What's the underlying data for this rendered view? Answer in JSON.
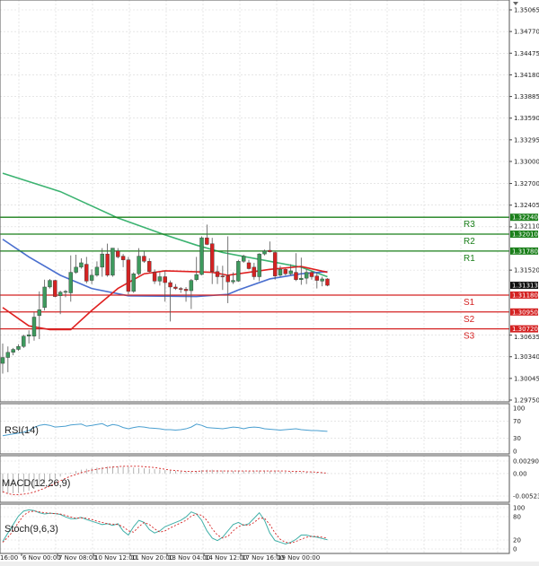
{
  "chart_data": [
    {
      "type": "candlestick",
      "panel": "price",
      "y_ticks": [
        "1.35065",
        "1.34770",
        "1.34475",
        "1.34180",
        "1.33885",
        "1.33590",
        "1.33295",
        "1.33000",
        "1.32700",
        "1.32405",
        "1.32110",
        "1.31520",
        "1.30635",
        "1.30340",
        "1.30045",
        "1.29750"
      ],
      "ylim": [
        1.2975,
        1.35065
      ],
      "x_ticks": [
        "16:00",
        "6 Nov 00:00",
        "7 Nov 08:00",
        "10 Nov 12:00",
        "11 Nov 20:00",
        "13 Nov 04:00",
        "14 Nov 12:00",
        "17 Nov 16:00",
        "19 Nov 00:00"
      ],
      "grid": true,
      "current_price": "1.31313",
      "levels": [
        {
          "name": "R3",
          "value": "1.32240",
          "color": "#1a7f1a"
        },
        {
          "name": "R2",
          "value": "1.32010",
          "color": "#1a7f1a"
        },
        {
          "name": "R1",
          "value": "1.31780",
          "color": "#1a7f1a"
        },
        {
          "name": "S1",
          "value": "1.31180",
          "color": "#d42222"
        },
        {
          "name": "S2",
          "value": "1.30950",
          "color": "#d42222"
        },
        {
          "name": "S3",
          "value": "1.30720",
          "color": "#d42222"
        }
      ],
      "candles_ohlc": [
        [
          1.3025,
          1.3052,
          1.3011,
          1.3033
        ],
        [
          1.3033,
          1.3048,
          1.3013,
          1.304
        ],
        [
          1.304,
          1.3046,
          1.3036,
          1.3044
        ],
        [
          1.3044,
          1.3051,
          1.3042,
          1.3048
        ],
        [
          1.3048,
          1.3064,
          1.3046,
          1.3062
        ],
        [
          1.3062,
          1.307,
          1.3052,
          1.3064
        ],
        [
          1.3062,
          1.3095,
          1.3056,
          1.3088
        ],
        [
          1.309,
          1.3123,
          1.3058,
          1.3098
        ],
        [
          1.3101,
          1.3139,
          1.3097,
          1.3129
        ],
        [
          1.3129,
          1.314,
          1.3127,
          1.3138
        ],
        [
          1.3138,
          1.3139,
          1.3115,
          1.3116
        ],
        [
          1.3117,
          1.3124,
          1.3092,
          1.3122
        ],
        [
          1.3122,
          1.3125,
          1.3115,
          1.3123
        ],
        [
          1.3121,
          1.3172,
          1.3109,
          1.3149
        ],
        [
          1.3149,
          1.3173,
          1.3147,
          1.3156
        ],
        [
          1.3156,
          1.3168,
          1.3154,
          1.3162
        ],
        [
          1.316,
          1.317,
          1.3134,
          1.3137
        ],
        [
          1.3138,
          1.3153,
          1.3133,
          1.3145
        ],
        [
          1.3145,
          1.3164,
          1.3143,
          1.3156
        ],
        [
          1.3156,
          1.3182,
          1.3143,
          1.3174
        ],
        [
          1.3174,
          1.3188,
          1.3143,
          1.3145
        ],
        [
          1.3145,
          1.3182,
          1.3143,
          1.3182
        ],
        [
          1.3178,
          1.3182,
          1.3168,
          1.317
        ],
        [
          1.3171,
          1.3174,
          1.3156,
          1.3166
        ],
        [
          1.3166,
          1.317,
          1.3119,
          1.3123
        ],
        [
          1.3123,
          1.3149,
          1.3121,
          1.3147
        ],
        [
          1.3147,
          1.3182,
          1.3145,
          1.3171
        ],
        [
          1.3171,
          1.3178,
          1.3162,
          1.3164
        ],
        [
          1.3164,
          1.3168,
          1.3149,
          1.315
        ],
        [
          1.3149,
          1.3153,
          1.3133,
          1.3137
        ],
        [
          1.3137,
          1.3149,
          1.3131,
          1.3143
        ],
        [
          1.3143,
          1.3151,
          1.3109,
          1.3135
        ],
        [
          1.3135,
          1.3138,
          1.3082,
          1.3129
        ],
        [
          1.3129,
          1.3133,
          1.3125,
          1.3127
        ],
        [
          1.3127,
          1.3129,
          1.3121,
          1.3126
        ],
        [
          1.3126,
          1.3129,
          1.3109,
          1.3124
        ],
        [
          1.3124,
          1.314,
          1.3099,
          1.3138
        ],
        [
          1.3139,
          1.317,
          1.3137,
          1.3146
        ],
        [
          1.3146,
          1.3198,
          1.3145,
          1.3196
        ],
        [
          1.3196,
          1.3214,
          1.3186,
          1.3187
        ],
        [
          1.3188,
          1.3196,
          1.3133,
          1.315
        ],
        [
          1.315,
          1.3158,
          1.3133,
          1.3143
        ],
        [
          1.3144,
          1.3158,
          1.3125,
          1.3143
        ],
        [
          1.3144,
          1.3198,
          1.3107,
          1.3136
        ],
        [
          1.3136,
          1.3149,
          1.3133,
          1.3138
        ],
        [
          1.3137,
          1.3166,
          1.3136,
          1.3164
        ],
        [
          1.3164,
          1.3173,
          1.3162,
          1.3171
        ],
        [
          1.3162,
          1.3166,
          1.3153,
          1.3154
        ],
        [
          1.3156,
          1.3162,
          1.3139,
          1.3143
        ],
        [
          1.3143,
          1.3175,
          1.3137,
          1.3174
        ],
        [
          1.3174,
          1.318,
          1.3172,
          1.3178
        ],
        [
          1.3179,
          1.3191,
          1.3176,
          1.3177
        ],
        [
          1.3176,
          1.3178,
          1.3139,
          1.3144
        ],
        [
          1.3145,
          1.3158,
          1.3143,
          1.3153
        ],
        [
          1.3153,
          1.3154,
          1.3145,
          1.3147
        ],
        [
          1.3147,
          1.316,
          1.3145,
          1.3151
        ],
        [
          1.3149,
          1.3175,
          1.3137,
          1.3139
        ],
        [
          1.3139,
          1.3169,
          1.3132,
          1.3141
        ],
        [
          1.3141,
          1.3153,
          1.3133,
          1.3149
        ],
        [
          1.3149,
          1.3151,
          1.3139,
          1.3143
        ],
        [
          1.3144,
          1.3149,
          1.3127,
          1.3138
        ],
        [
          1.3137,
          1.3143,
          1.313,
          1.314
        ],
        [
          1.314,
          1.3141,
          1.313,
          1.31313
        ]
      ],
      "moving_averages": [
        {
          "color": "#3cb371",
          "points": [
            [
              0,
              1.3284
            ],
            [
              11,
              1.3259
            ],
            [
              22,
              1.3223
            ],
            [
              31,
              1.32
            ],
            [
              37,
              1.3186
            ],
            [
              42,
              1.3176
            ],
            [
              51,
              1.3164
            ],
            [
              57,
              1.3156
            ],
            [
              62,
              1.3143
            ]
          ]
        },
        {
          "color": "#4a6fcf",
          "points": [
            [
              0,
              1.3194
            ],
            [
              5,
              1.317
            ],
            [
              11,
              1.3145
            ],
            [
              17,
              1.3127
            ],
            [
              24,
              1.3117
            ],
            [
              37,
              1.3116
            ],
            [
              43,
              1.3119
            ],
            [
              45,
              1.3125
            ],
            [
              51,
              1.314
            ],
            [
              57,
              1.3147
            ],
            [
              62,
              1.315
            ]
          ]
        },
        {
          "color": "#e02020",
          "points": [
            [
              0,
              1.3101
            ],
            [
              5,
              1.3076
            ],
            [
              9,
              1.3071
            ],
            [
              13,
              1.3071
            ],
            [
              17,
              1.3097
            ],
            [
              22,
              1.3127
            ],
            [
              27,
              1.3147
            ],
            [
              31,
              1.3151
            ],
            [
              40,
              1.3149
            ],
            [
              43,
              1.3145
            ],
            [
              51,
              1.3153
            ],
            [
              57,
              1.3157
            ],
            [
              62,
              1.3149
            ]
          ]
        }
      ]
    },
    {
      "type": "line",
      "panel": "rsi",
      "label": "RSI(14)",
      "y_ticks": [
        "100",
        "70",
        "30",
        "0"
      ],
      "ylim": [
        0,
        100
      ],
      "color": "#4a9fd0",
      "values": [
        36,
        38,
        40,
        42,
        44,
        48,
        55,
        60,
        62,
        60,
        56,
        57,
        58,
        61,
        62,
        63,
        58,
        60,
        62,
        64,
        58,
        62,
        60,
        55,
        52,
        55,
        57,
        56,
        54,
        53,
        52,
        50,
        50,
        49,
        50,
        52,
        56,
        63,
        60,
        55,
        54,
        53,
        52,
        54,
        56,
        55,
        52,
        55,
        56,
        55,
        52,
        51,
        50,
        49,
        50,
        51,
        52,
        50,
        49,
        48,
        48,
        47,
        46
      ]
    },
    {
      "type": "bar+line",
      "panel": "macd",
      "label": "MACD(12,26,9)",
      "y_ticks": [
        "0.002909",
        "0.00",
        "-0.005233"
      ],
      "ylim": [
        -0.005233,
        0.002909
      ],
      "histogram_color": "#a0a0a0",
      "signal_color": "#d42222",
      "histogram": [
        -0.0045,
        -0.0046,
        -0.0046,
        -0.0045,
        -0.0043,
        -0.004,
        -0.0035,
        -0.003,
        -0.0024,
        -0.0018,
        -0.0012,
        -0.0007,
        -0.0002,
        0.0002,
        0.0006,
        0.0009,
        0.0011,
        0.0013,
        0.0014,
        0.0015,
        0.0016,
        0.0017,
        0.0017,
        0.0016,
        0.0015,
        0.0014,
        0.0013,
        0.0012,
        0.0011,
        0.001,
        0.0009,
        0.0008,
        0.0007,
        0.0006,
        0.0005,
        0.0005,
        0.0005,
        0.0006,
        0.0008,
        0.0009,
        0.0009,
        0.0008,
        0.0007,
        0.0007,
        0.0006,
        0.0006,
        0.0006,
        0.0006,
        0.0006,
        0.0007,
        0.0007,
        0.0006,
        0.0005,
        0.0005,
        0.0004,
        0.0004,
        0.0004,
        0.0003,
        0.0003,
        0.0003,
        0.0002,
        0.0002,
        0.0001
      ],
      "signal": [
        -0.0042,
        -0.0047,
        -0.0049,
        -0.0049,
        -0.0048,
        -0.0046,
        -0.0043,
        -0.0039,
        -0.0034,
        -0.0029,
        -0.0023,
        -0.0017,
        -0.0011,
        -0.0006,
        -0.0002,
        0.0002,
        0.0005,
        0.0008,
        0.001,
        0.0012,
        0.0014,
        0.0015,
        0.0016,
        0.0017,
        0.0017,
        0.0017,
        0.0017,
        0.0016,
        0.0015,
        0.0014,
        0.0012,
        0.001,
        0.0008,
        0.0007,
        0.0006,
        0.0005,
        0.0005,
        0.0005,
        0.0006,
        0.0006,
        0.0006,
        0.0006,
        0.0006,
        0.0006,
        0.0006,
        0.0006,
        0.0006,
        0.0006,
        0.0006,
        0.0006,
        0.0006,
        0.0006,
        0.0006,
        0.0006,
        0.0006,
        0.0005,
        0.0005,
        0.0005,
        0.0004,
        0.0004,
        0.0003,
        0.0002,
        0.0001
      ]
    },
    {
      "type": "line",
      "panel": "stoch",
      "label": "Stoch(9,6,3)",
      "y_ticks": [
        "100",
        "80",
        "20",
        "0"
      ],
      "ylim": [
        0,
        100
      ],
      "main_color": "#40b0a8",
      "signal_color": "#d42222",
      "main": [
        20,
        40,
        60,
        80,
        92,
        95,
        93,
        88,
        85,
        87,
        86,
        84,
        78,
        74,
        74,
        77,
        72,
        68,
        64,
        60,
        62,
        58,
        62,
        45,
        35,
        55,
        70,
        65,
        48,
        40,
        45,
        55,
        60,
        65,
        70,
        78,
        90,
        85,
        70,
        45,
        28,
        22,
        30,
        45,
        60,
        65,
        58,
        62,
        75,
        88,
        70,
        40,
        22,
        18,
        14,
        18,
        25,
        35,
        35,
        32,
        30,
        27,
        24
      ],
      "signal": [
        18,
        30,
        45,
        65,
        82,
        90,
        92,
        90,
        88,
        87,
        86,
        85,
        82,
        78,
        75,
        76,
        75,
        72,
        68,
        65,
        62,
        61,
        60,
        55,
        45,
        42,
        55,
        65,
        60,
        50,
        42,
        45,
        52,
        58,
        64,
        70,
        80,
        85,
        82,
        70,
        50,
        35,
        28,
        32,
        45,
        55,
        60,
        58,
        65,
        75,
        75,
        60,
        40,
        25,
        18,
        16,
        20,
        25,
        30,
        32,
        32,
        30,
        28
      ]
    }
  ]
}
